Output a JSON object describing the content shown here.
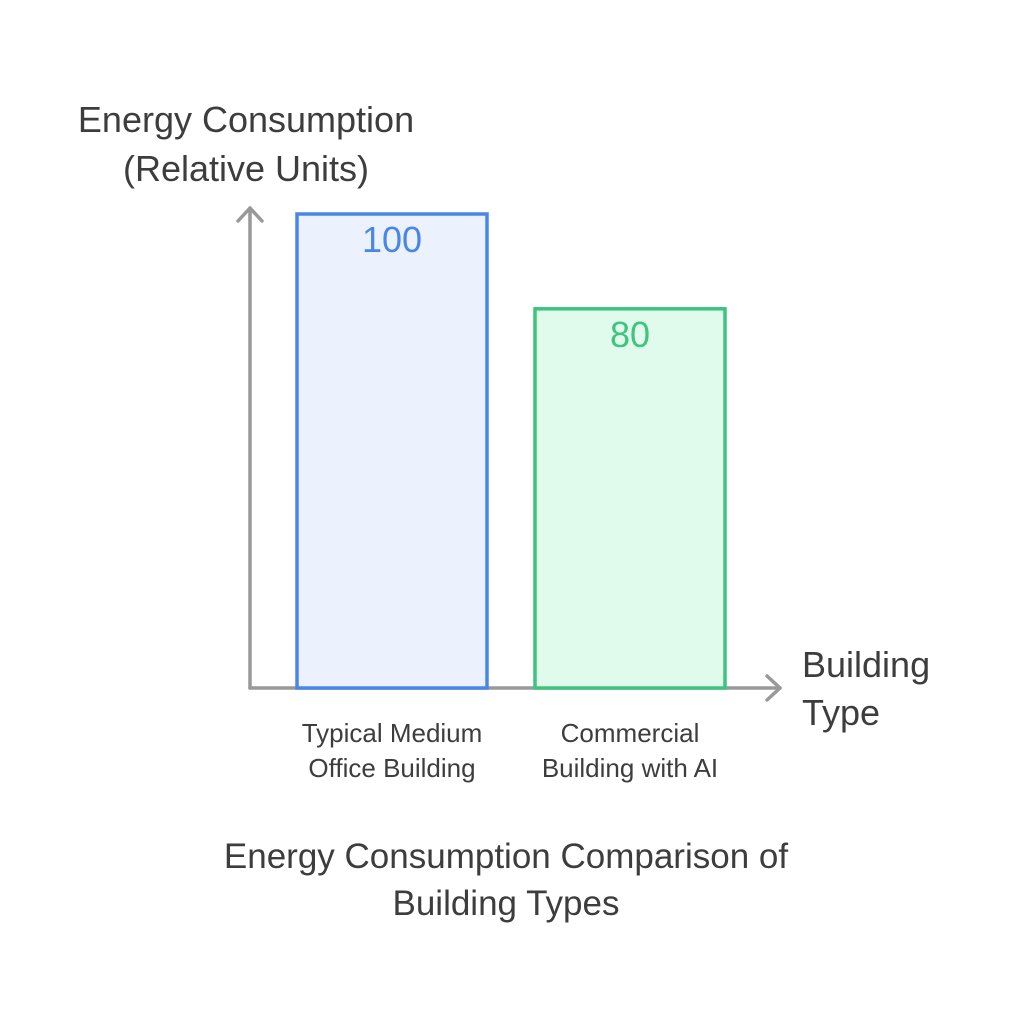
{
  "chart_data": {
    "type": "bar",
    "categories": [
      [
        "Typical Medium",
        "Office Building"
      ],
      [
        "Commercial",
        "Building with AI"
      ]
    ],
    "values": [
      100,
      80
    ],
    "data_labels": [
      "100",
      "80"
    ],
    "bar_colors": [
      {
        "fill": "#ebf1fd",
        "stroke": "#4a86e8",
        "label": "#4a86e8"
      },
      {
        "fill": "#e0faec",
        "stroke": "#3dc47e",
        "label": "#3dc47e"
      }
    ],
    "ylabel": [
      "Energy Consumption",
      "(Relative Units)"
    ],
    "xlabel": [
      "Building",
      "Type"
    ],
    "title": [
      "Energy Consumption Comparison of",
      "Building Types"
    ],
    "ylim": [
      0,
      100
    ],
    "grid": false,
    "legend": "none",
    "axis_color": "#999999"
  }
}
